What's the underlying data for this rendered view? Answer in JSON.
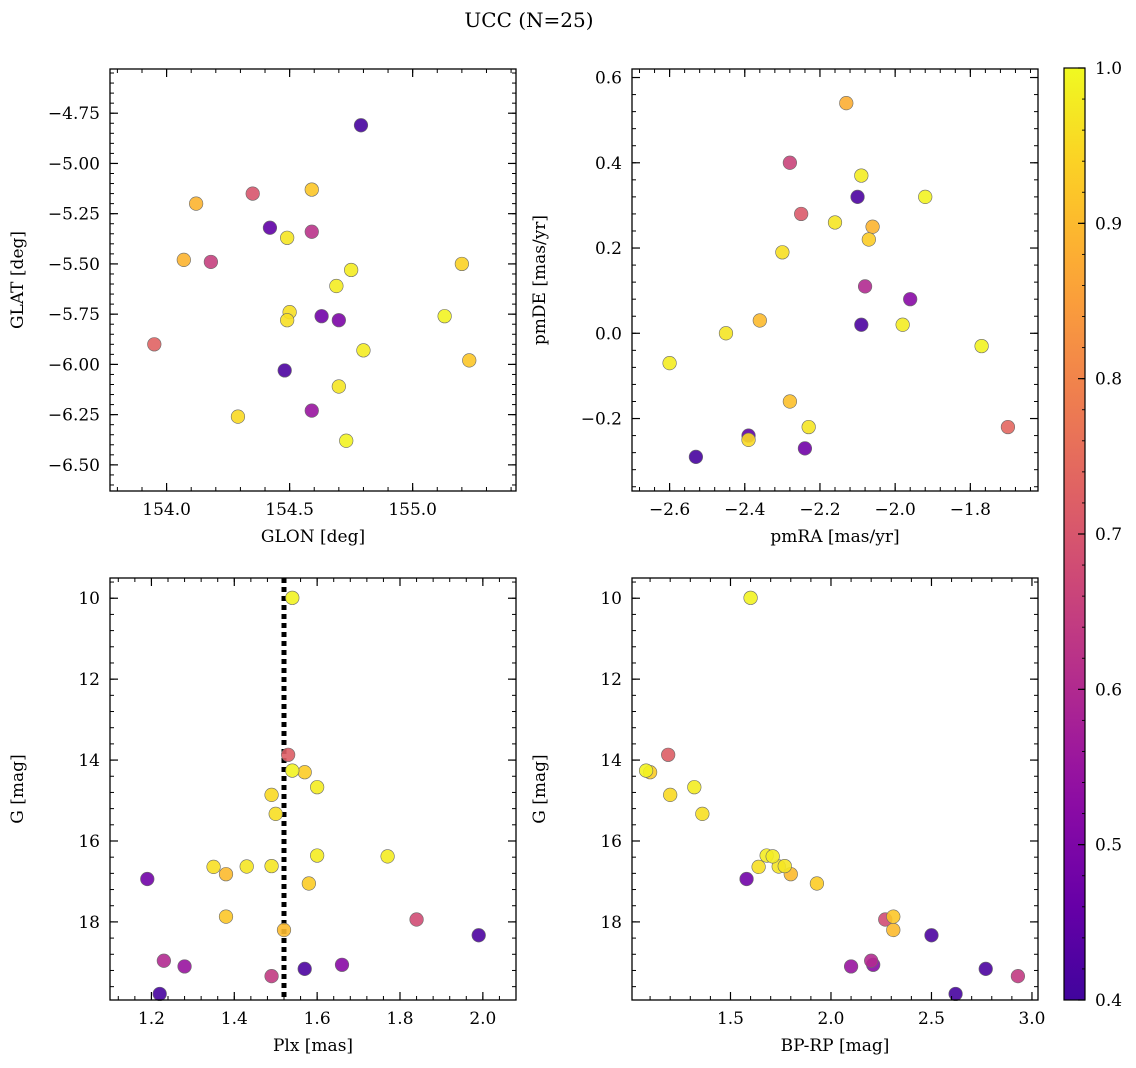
{
  "figure": {
    "title": "UCC (N=25)",
    "colorbar": {
      "min": 0.4,
      "max": 1.0,
      "ticks": [
        "0.4",
        "0.5",
        "0.6",
        "0.7",
        "0.8",
        "0.9",
        "1.0"
      ],
      "colormap": "plasma"
    }
  },
  "chart_data": [
    {
      "type": "scatter",
      "xlabel": "GLON [deg]",
      "ylabel": "GLAT [deg]",
      "xlim": [
        153.77,
        155.42
      ],
      "ylim": [
        -6.63,
        -4.53
      ],
      "x_ticks": [
        154.0,
        154.5,
        155.0
      ],
      "x_tick_labels": [
        "154.0",
        "154.5",
        "155.0"
      ],
      "y_ticks": [
        -6.5,
        -6.25,
        -6.0,
        -5.75,
        -5.5,
        -5.25,
        -5.0,
        -4.75
      ],
      "y_tick_labels": [
        "−6.50",
        "−6.25",
        "−6.00",
        "−5.75",
        "−5.50",
        "−5.25",
        "−5.00",
        "−4.75"
      ],
      "y_inverted": false,
      "points": [
        {
          "x": 154.79,
          "y": -4.81,
          "c": 0.41
        },
        {
          "x": 154.48,
          "y": -6.03,
          "c": 0.42
        },
        {
          "x": 154.42,
          "y": -5.32,
          "c": 0.45
        },
        {
          "x": 154.63,
          "y": -5.76,
          "c": 0.48
        },
        {
          "x": 154.7,
          "y": -5.78,
          "c": 0.5
        },
        {
          "x": 154.59,
          "y": -6.23,
          "c": 0.55
        },
        {
          "x": 154.59,
          "y": -5.34,
          "c": 0.62
        },
        {
          "x": 154.18,
          "y": -5.49,
          "c": 0.65
        },
        {
          "x": 154.35,
          "y": -5.15,
          "c": 0.7
        },
        {
          "x": 153.95,
          "y": -5.9,
          "c": 0.73
        },
        {
          "x": 154.12,
          "y": -5.2,
          "c": 0.89
        },
        {
          "x": 154.07,
          "y": -5.48,
          "c": 0.89
        },
        {
          "x": 154.59,
          "y": -5.13,
          "c": 0.92
        },
        {
          "x": 155.23,
          "y": -5.98,
          "c": 0.92
        },
        {
          "x": 155.2,
          "y": -5.5,
          "c": 0.94
        },
        {
          "x": 154.29,
          "y": -6.26,
          "c": 0.95
        },
        {
          "x": 154.5,
          "y": -5.74,
          "c": 0.96
        },
        {
          "x": 154.49,
          "y": -5.78,
          "c": 0.96
        },
        {
          "x": 154.49,
          "y": -5.37,
          "c": 0.97
        },
        {
          "x": 154.7,
          "y": -6.11,
          "c": 0.97
        },
        {
          "x": 154.69,
          "y": -5.61,
          "c": 0.98
        },
        {
          "x": 154.75,
          "y": -5.53,
          "c": 0.98
        },
        {
          "x": 154.8,
          "y": -5.93,
          "c": 0.98
        },
        {
          "x": 154.73,
          "y": -6.38,
          "c": 0.99
        },
        {
          "x": 155.13,
          "y": -5.76,
          "c": 0.99
        }
      ]
    },
    {
      "type": "scatter",
      "xlabel": "pmRA [mas/yr]",
      "ylabel": "pmDE [mas/yr]",
      "xlim": [
        -2.7,
        -1.62
      ],
      "ylim": [
        -0.37,
        0.62
      ],
      "x_ticks": [
        -2.6,
        -2.4,
        -2.2,
        -2.0,
        -1.8
      ],
      "x_tick_labels": [
        "−2.6",
        "−2.4",
        "−2.2",
        "−2.0",
        "−1.8"
      ],
      "y_ticks": [
        -0.2,
        0.0,
        0.2,
        0.4,
        0.6
      ],
      "y_tick_labels": [
        "−0.2",
        "0.0",
        "0.2",
        "0.4",
        "0.6"
      ],
      "y_inverted": false,
      "points": [
        {
          "x": -2.53,
          "y": -0.29,
          "c": 0.41
        },
        {
          "x": -2.09,
          "y": 0.02,
          "c": 0.42
        },
        {
          "x": -2.1,
          "y": 0.32,
          "c": 0.42
        },
        {
          "x": -2.39,
          "y": -0.24,
          "c": 0.45
        },
        {
          "x": -2.24,
          "y": -0.27,
          "c": 0.48
        },
        {
          "x": -1.96,
          "y": 0.08,
          "c": 0.52
        },
        {
          "x": -2.08,
          "y": 0.11,
          "c": 0.6
        },
        {
          "x": -2.28,
          "y": 0.4,
          "c": 0.66
        },
        {
          "x": -2.25,
          "y": 0.28,
          "c": 0.71
        },
        {
          "x": -1.7,
          "y": -0.22,
          "c": 0.74
        },
        {
          "x": -2.13,
          "y": 0.54,
          "c": 0.88
        },
        {
          "x": -2.06,
          "y": 0.25,
          "c": 0.89
        },
        {
          "x": -2.36,
          "y": 0.03,
          "c": 0.9
        },
        {
          "x": -2.28,
          "y": -0.16,
          "c": 0.91
        },
        {
          "x": -2.07,
          "y": 0.22,
          "c": 0.93
        },
        {
          "x": -2.39,
          "y": -0.25,
          "c": 0.95
        },
        {
          "x": -2.3,
          "y": 0.19,
          "c": 0.96
        },
        {
          "x": -2.23,
          "y": -0.22,
          "c": 0.97
        },
        {
          "x": -2.16,
          "y": 0.26,
          "c": 0.97
        },
        {
          "x": -2.45,
          "y": 0.0,
          "c": 0.97
        },
        {
          "x": -2.6,
          "y": -0.07,
          "c": 0.98
        },
        {
          "x": -2.09,
          "y": 0.37,
          "c": 0.98
        },
        {
          "x": -1.98,
          "y": 0.02,
          "c": 0.98
        },
        {
          "x": -1.92,
          "y": 0.32,
          "c": 0.99
        },
        {
          "x": -1.77,
          "y": -0.03,
          "c": 0.99
        }
      ]
    },
    {
      "type": "scatter",
      "xlabel": "Plx [mas]",
      "ylabel": "G [mag]",
      "xlim": [
        1.1,
        2.08
      ],
      "ylim": [
        19.93,
        9.5
      ],
      "x_ticks": [
        1.2,
        1.4,
        1.6,
        1.8,
        2.0
      ],
      "x_tick_labels": [
        "1.2",
        "1.4",
        "1.6",
        "1.8",
        "2.0"
      ],
      "y_ticks": [
        10,
        12,
        14,
        16,
        18
      ],
      "y_tick_labels": [
        "10",
        "12",
        "14",
        "16",
        "18"
      ],
      "y_inverted": true,
      "vline": {
        "x": 1.52,
        "style": "dotted"
      },
      "points": [
        {
          "x": 1.22,
          "y": 19.78,
          "c": 0.41
        },
        {
          "x": 1.57,
          "y": 19.16,
          "c": 0.42
        },
        {
          "x": 1.99,
          "y": 18.33,
          "c": 0.42
        },
        {
          "x": 1.19,
          "y": 16.94,
          "c": 0.48
        },
        {
          "x": 1.66,
          "y": 19.06,
          "c": 0.52
        },
        {
          "x": 1.28,
          "y": 19.1,
          "c": 0.55
        },
        {
          "x": 1.23,
          "y": 18.96,
          "c": 0.6
        },
        {
          "x": 1.49,
          "y": 19.34,
          "c": 0.64
        },
        {
          "x": 1.84,
          "y": 17.94,
          "c": 0.68
        },
        {
          "x": 1.53,
          "y": 13.87,
          "c": 0.72
        },
        {
          "x": 1.52,
          "y": 18.2,
          "c": 0.9
        },
        {
          "x": 1.38,
          "y": 16.82,
          "c": 0.9
        },
        {
          "x": 1.38,
          "y": 17.87,
          "c": 0.92
        },
        {
          "x": 1.57,
          "y": 14.3,
          "c": 0.93
        },
        {
          "x": 1.58,
          "y": 17.05,
          "c": 0.93
        },
        {
          "x": 1.49,
          "y": 14.86,
          "c": 0.95
        },
        {
          "x": 1.5,
          "y": 15.33,
          "c": 0.96
        },
        {
          "x": 1.35,
          "y": 16.64,
          "c": 0.96
        },
        {
          "x": 1.43,
          "y": 16.63,
          "c": 0.97
        },
        {
          "x": 1.49,
          "y": 16.62,
          "c": 0.97
        },
        {
          "x": 1.6,
          "y": 16.36,
          "c": 0.98
        },
        {
          "x": 1.77,
          "y": 16.38,
          "c": 0.98
        },
        {
          "x": 1.6,
          "y": 14.67,
          "c": 0.98
        },
        {
          "x": 1.54,
          "y": 14.26,
          "c": 0.99
        },
        {
          "x": 1.54,
          "y": 9.99,
          "c": 0.99
        }
      ]
    },
    {
      "type": "scatter",
      "xlabel": "BP-RP [mag]",
      "ylabel": "G [mag]",
      "xlim": [
        1.01,
        3.03
      ],
      "ylim": [
        19.93,
        9.5
      ],
      "x_ticks": [
        1.5,
        2.0,
        2.5,
        3.0
      ],
      "x_tick_labels": [
        "1.5",
        "2.0",
        "2.5",
        "3.0"
      ],
      "y_ticks": [
        10,
        12,
        14,
        16,
        18
      ],
      "y_tick_labels": [
        "10",
        "12",
        "14",
        "16",
        "18"
      ],
      "y_inverted": true,
      "points": [
        {
          "x": 2.62,
          "y": 19.78,
          "c": 0.41
        },
        {
          "x": 2.77,
          "y": 19.16,
          "c": 0.42
        },
        {
          "x": 2.5,
          "y": 18.33,
          "c": 0.42
        },
        {
          "x": 1.58,
          "y": 16.94,
          "c": 0.48
        },
        {
          "x": 2.21,
          "y": 19.06,
          "c": 0.52
        },
        {
          "x": 2.1,
          "y": 19.1,
          "c": 0.55
        },
        {
          "x": 2.2,
          "y": 18.96,
          "c": 0.6
        },
        {
          "x": 2.93,
          "y": 19.34,
          "c": 0.64
        },
        {
          "x": 2.27,
          "y": 17.94,
          "c": 0.68
        },
        {
          "x": 1.19,
          "y": 13.87,
          "c": 0.72
        },
        {
          "x": 2.31,
          "y": 18.2,
          "c": 0.9
        },
        {
          "x": 1.8,
          "y": 16.82,
          "c": 0.9
        },
        {
          "x": 2.31,
          "y": 17.87,
          "c": 0.92
        },
        {
          "x": 1.1,
          "y": 14.3,
          "c": 0.93
        },
        {
          "x": 1.93,
          "y": 17.05,
          "c": 0.93
        },
        {
          "x": 1.2,
          "y": 14.86,
          "c": 0.95
        },
        {
          "x": 1.36,
          "y": 15.33,
          "c": 0.96
        },
        {
          "x": 1.64,
          "y": 16.64,
          "c": 0.96
        },
        {
          "x": 1.74,
          "y": 16.63,
          "c": 0.97
        },
        {
          "x": 1.77,
          "y": 16.62,
          "c": 0.97
        },
        {
          "x": 1.68,
          "y": 16.36,
          "c": 0.98
        },
        {
          "x": 1.71,
          "y": 16.38,
          "c": 0.98
        },
        {
          "x": 1.32,
          "y": 14.67,
          "c": 0.98
        },
        {
          "x": 1.08,
          "y": 14.26,
          "c": 0.99
        },
        {
          "x": 1.6,
          "y": 9.99,
          "c": 0.99
        }
      ]
    }
  ]
}
